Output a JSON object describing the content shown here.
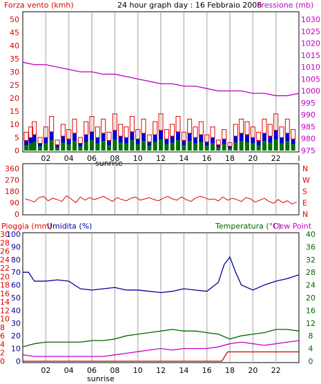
{
  "header": {
    "left_label": "Forza vento (kmh)",
    "title": "24 hour graph day : 16 Febbraio 2006",
    "right_label": "Pressione (mb)"
  },
  "panels": {
    "wind": {
      "y_left_ticks": [
        "0",
        "5",
        "10",
        "15",
        "20",
        "25",
        "30",
        "35",
        "40",
        "45",
        "50"
      ],
      "y_right_ticks": [
        "975",
        "980",
        "985",
        "990",
        "995",
        "1000",
        "1005",
        "1010",
        "1015",
        "1020",
        "1025",
        "1030"
      ],
      "x_ticks": [
        "02",
        "04",
        "06",
        "08",
        "10",
        "12",
        "14",
        "16",
        "18",
        "20",
        "22",
        "l"
      ],
      "sunrise_label": "sunrise"
    },
    "direction": {
      "y_ticks": [
        "360",
        "270",
        "180",
        "90",
        "0"
      ],
      "compass": [
        "N",
        "W",
        "S",
        "E",
        "N"
      ]
    },
    "weather": {
      "label_rain": "Pioggia (mm)",
      "label_humidity": "Umidita (%)",
      "label_temp": "Temperatura (°C)",
      "label_dew": "Dew Point",
      "y_left_rain_ticks": [
        "0",
        "2",
        "4",
        "6",
        "8",
        "10",
        "12",
        "14",
        "16",
        "18",
        "20",
        "22",
        "24",
        "26",
        "28",
        "30"
      ],
      "y_left_hum_ticks": [
        "0",
        "10",
        "20",
        "30",
        "40",
        "50",
        "60",
        "70",
        "80",
        "90",
        "100"
      ],
      "y_right_ticks": [
        "0",
        "4",
        "8",
        "12",
        "16",
        "20",
        "24",
        "28",
        "32",
        "36",
        "40"
      ],
      "x_ticks": [
        "02",
        "04",
        "06",
        "08",
        "10",
        "12",
        "14",
        "16",
        "18",
        "20",
        "22"
      ],
      "sunrise_label": "sunrise"
    }
  },
  "colors": {
    "wind_speed": "#e00000",
    "wind_gust_fill": "#0000d0",
    "wind_avg_fill": "#007000",
    "pressure": "#c000c0",
    "direction": "#e00000",
    "humidity": "#000099",
    "temperature": "#006600",
    "dew_point": "#cc00cc",
    "rain": "#cc0000",
    "grid_vertical": "#cccccc",
    "axis_text_left": "#e00000",
    "axis_text_right": "#c000c0",
    "label_blue": "#000099",
    "label_green": "#006600"
  },
  "chart_data": [
    {
      "type": "line",
      "title": "24 hour graph day : 16 Febbraio 2006",
      "xlabel": "",
      "ylabel": "Forza vento (kmh)",
      "y2label": "Pressione (mb)",
      "xlim": [
        0,
        24
      ],
      "ylim": [
        0,
        50
      ],
      "y2lim": [
        975,
        1030
      ],
      "series": [
        {
          "name": "Pressione (mb)",
          "axis": "right",
          "x": [
            0,
            1,
            2,
            3,
            4,
            5,
            6,
            7,
            8,
            9,
            10,
            11,
            12,
            13,
            14,
            15,
            16,
            17,
            18,
            19,
            20,
            21,
            22,
            23,
            24
          ],
          "values": [
            1012,
            1011,
            1011,
            1010,
            1009,
            1008,
            1008,
            1007,
            1007,
            1006,
            1005,
            1004,
            1003,
            1003,
            1002,
            1002,
            1001,
            1000,
            1000,
            1000,
            999,
            999,
            998,
            998,
            999
          ]
        },
        {
          "name": "Forza vento (kmh)",
          "axis": "left",
          "x": [
            0.3,
            0.7,
            1.0,
            1.5,
            2.0,
            2.5,
            3.0,
            3.5,
            4.0,
            4.5,
            5.0,
            5.5,
            6.0,
            6.5,
            7.0,
            7.5,
            8.0,
            8.5,
            9.0,
            9.5,
            10.0,
            10.5,
            11.0,
            11.5,
            12.0,
            12.5,
            13.0,
            13.5,
            14.0,
            14.5,
            15.0,
            15.5,
            16.0,
            16.5,
            17.0,
            17.5,
            18.0,
            18.5,
            19.0,
            19.5,
            20.0,
            20.5,
            21.0,
            21.5,
            22.0,
            22.5,
            23.0,
            23.5
          ],
          "values": [
            7,
            9,
            11,
            5,
            9,
            13,
            4,
            10,
            8,
            12,
            5,
            11,
            13,
            9,
            12,
            7,
            14,
            10,
            9,
            13,
            8,
            12,
            6,
            11,
            14,
            8,
            10,
            13,
            7,
            12,
            9,
            11,
            6,
            9,
            4,
            8,
            3,
            10,
            12,
            11,
            9,
            7,
            12,
            10,
            14,
            9,
            12,
            8
          ]
        }
      ]
    },
    {
      "type": "line",
      "title": "",
      "xlabel": "",
      "ylabel": "",
      "xlim": [
        0,
        24
      ],
      "ylim": [
        0,
        360
      ],
      "series": [
        {
          "name": "",
          "x": [
            0.2,
            0.6,
            1.0,
            1.4,
            1.8,
            2.2,
            2.6,
            3.0,
            3.4,
            3.8,
            4.2,
            4.6,
            5.0,
            5.4,
            5.8,
            6.2,
            6.6,
            7.0,
            7.4,
            7.8,
            8.2,
            8.6,
            9.0,
            9.4,
            9.8,
            10.2,
            10.6,
            11.0,
            11.4,
            11.8,
            12.2,
            12.6,
            13.0,
            13.4,
            13.8,
            14.2,
            14.6,
            15.0,
            15.4,
            15.8,
            16.2,
            16.6,
            17.0,
            17.4,
            17.8,
            18.2,
            18.6,
            19.0,
            19.4,
            19.8,
            20.2,
            20.6,
            21.0,
            21.4,
            21.8,
            22.2,
            22.6,
            23.0,
            23.4,
            23.8
          ],
          "values": [
            120,
            110,
            95,
            130,
            140,
            105,
            125,
            115,
            100,
            145,
            120,
            90,
            135,
            110,
            130,
            115,
            125,
            140,
            120,
            100,
            130,
            115,
            105,
            125,
            135,
            110,
            120,
            130,
            115,
            105,
            125,
            140,
            120,
            110,
            135,
            115,
            100,
            125,
            140,
            130,
            115,
            120,
            105,
            135,
            110,
            125,
            115,
            100,
            130,
            120,
            95,
            110,
            125,
            100,
            85,
            115,
            90,
            105,
            80,
            95
          ]
        }
      ]
    },
    {
      "type": "line",
      "title": "",
      "xlabel": "",
      "ylabel": "Pioggia (mm)",
      "y2label": "Temperatura (°C)",
      "xlim": [
        0,
        24
      ],
      "series": [
        {
          "name": "Umidita (%)",
          "axis": "humidity",
          "ylim": [
            0,
            100
          ],
          "x": [
            0,
            0.5,
            1,
            2,
            3,
            4,
            5,
            6,
            7,
            8,
            9,
            10,
            11,
            12,
            13,
            14,
            15,
            16,
            17,
            17.5,
            18,
            18.5,
            19,
            20,
            21,
            22,
            23,
            24
          ],
          "values": [
            70,
            70,
            63,
            63,
            64,
            63,
            57,
            56,
            57,
            58,
            56,
            56,
            55,
            54,
            55,
            57,
            56,
            55,
            62,
            76,
            82,
            70,
            60,
            56,
            60,
            63,
            65,
            68
          ]
        },
        {
          "name": "Temperatura (°C)",
          "axis": "right",
          "ylim": [
            0,
            40
          ],
          "x": [
            0,
            1,
            2,
            3,
            4,
            5,
            6,
            7,
            8,
            9,
            10,
            11,
            12,
            13,
            14,
            15,
            16,
            17,
            18,
            19,
            20,
            21,
            22,
            23,
            24
          ],
          "values": [
            4.5,
            5.5,
            6,
            6,
            6,
            6,
            6.5,
            6.5,
            7,
            8,
            8.5,
            9,
            9.5,
            10,
            9.5,
            9.5,
            9,
            8.5,
            7,
            8,
            8.5,
            9,
            10,
            10,
            9.5
          ]
        },
        {
          "name": "Dew Point",
          "axis": "right",
          "ylim": [
            0,
            40
          ],
          "x": [
            0,
            1,
            2,
            3,
            4,
            5,
            6,
            7,
            8,
            9,
            10,
            11,
            12,
            13,
            14,
            15,
            16,
            17,
            18,
            19,
            20,
            21,
            22,
            23,
            24
          ],
          "values": [
            2,
            1.5,
            1.5,
            1.5,
            1.5,
            1.5,
            1.5,
            1.5,
            2,
            2.5,
            3,
            3.5,
            4,
            3.5,
            4,
            4,
            4,
            4.5,
            5.5,
            6,
            5.5,
            5,
            5.5,
            6,
            6.5
          ]
        },
        {
          "name": "Pioggia (mm)",
          "axis": "left",
          "ylim": [
            0,
            30
          ],
          "x": [
            0,
            17.3,
            17.8,
            18.5,
            24
          ],
          "values": [
            0,
            0,
            2.2,
            2.2,
            2.2
          ]
        }
      ]
    }
  ]
}
